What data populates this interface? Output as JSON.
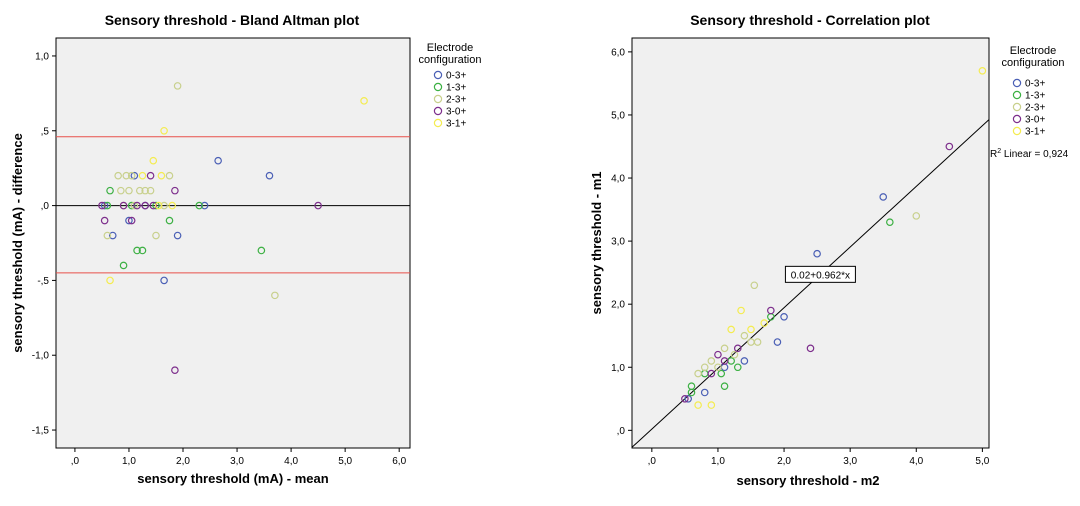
{
  "colors": {
    "plot_bg": "#f0f0f0",
    "limit_line": "#e8504a",
    "zero_line": "#000000",
    "fit_line": "#000000",
    "series": {
      "0-3+": "#4a5fb5",
      "1-3+": "#3cb043",
      "2-3+": "#c8d08c",
      "3-0+": "#7d2e8c",
      "3-1+": "#f4ec50"
    }
  },
  "chart_data": [
    {
      "type": "scatter",
      "title": "Sensory threshold - Bland Altman plot",
      "xlabel": "sensory threshold (mA) - mean",
      "ylabel": "sensory threshold (mA) - difference",
      "xlim": [
        -0.35,
        6.2
      ],
      "ylim": [
        -1.62,
        1.12
      ],
      "xticks": [
        0,
        1,
        2,
        3,
        4,
        5,
        6
      ],
      "xtick_labels": [
        ",0",
        "1,0",
        "2,0",
        "3,0",
        "4,0",
        "5,0",
        "6,0"
      ],
      "yticks": [
        -1.5,
        -1.0,
        -0.5,
        0.0,
        0.5,
        1.0
      ],
      "ytick_labels": [
        "-1,5",
        "-1,0",
        "-,5",
        ",0",
        ",5",
        "1,0"
      ],
      "grid": false,
      "legend": {
        "title_lines": [
          "Electrode",
          "configuration"
        ],
        "placement": "right",
        "entries": [
          "0-3+",
          "1-3+",
          "2-3+",
          "3-0+",
          "3-1+"
        ]
      },
      "reference_lines": [
        {
          "y": 0.46,
          "color_key": "limit_line"
        },
        {
          "y": 0.0,
          "color_key": "zero_line"
        },
        {
          "y": -0.45,
          "color_key": "limit_line"
        }
      ],
      "series": [
        {
          "name": "0-3+",
          "points": [
            [
              0.55,
              0.0
            ],
            [
              0.7,
              -0.2
            ],
            [
              1.0,
              -0.1
            ],
            [
              1.1,
              0.2
            ],
            [
              1.3,
              0.0
            ],
            [
              1.65,
              -0.5
            ],
            [
              1.9,
              -0.2
            ],
            [
              2.4,
              0.0
            ],
            [
              2.65,
              0.3
            ],
            [
              3.6,
              0.2
            ]
          ]
        },
        {
          "name": "1-3+",
          "points": [
            [
              0.6,
              0.0
            ],
            [
              0.65,
              0.1
            ],
            [
              0.9,
              -0.4
            ],
            [
              1.05,
              0.0
            ],
            [
              1.15,
              -0.3
            ],
            [
              1.25,
              -0.3
            ],
            [
              1.5,
              0.0
            ],
            [
              1.75,
              -0.1
            ],
            [
              2.3,
              0.0
            ],
            [
              3.45,
              -0.3
            ]
          ]
        },
        {
          "name": "2-3+",
          "points": [
            [
              0.6,
              -0.2
            ],
            [
              0.8,
              0.2
            ],
            [
              0.85,
              0.1
            ],
            [
              0.9,
              0.0
            ],
            [
              0.95,
              0.2
            ],
            [
              1.0,
              0.1
            ],
            [
              1.05,
              0.2
            ],
            [
              1.1,
              0.0
            ],
            [
              1.2,
              0.1
            ],
            [
              1.3,
              0.1
            ],
            [
              1.4,
              0.1
            ],
            [
              1.5,
              -0.2
            ],
            [
              1.65,
              0.0
            ],
            [
              1.75,
              0.2
            ],
            [
              1.9,
              0.8
            ],
            [
              3.7,
              -0.6
            ]
          ]
        },
        {
          "name": "3-0+",
          "points": [
            [
              0.5,
              0.0
            ],
            [
              0.55,
              -0.1
            ],
            [
              0.9,
              0.0
            ],
            [
              1.05,
              -0.1
            ],
            [
              1.15,
              0.0
            ],
            [
              1.3,
              0.0
            ],
            [
              1.4,
              0.2
            ],
            [
              1.45,
              0.0
            ],
            [
              1.85,
              0.1
            ],
            [
              1.85,
              -1.1
            ],
            [
              4.5,
              0.0
            ]
          ]
        },
        {
          "name": "3-1+",
          "points": [
            [
              0.65,
              -0.5
            ],
            [
              1.25,
              0.2
            ],
            [
              1.45,
              0.3
            ],
            [
              1.55,
              0.0
            ],
            [
              1.6,
              0.2
            ],
            [
              1.65,
              0.5
            ],
            [
              1.8,
              0.0
            ],
            [
              5.35,
              0.7
            ]
          ]
        }
      ]
    },
    {
      "type": "scatter",
      "title": "Sensory threshold - Correlation plot",
      "xlabel": "sensory threshold - m2",
      "ylabel": "sensory threshold - m1",
      "xlim": [
        -0.3,
        5.1
      ],
      "ylim": [
        -0.28,
        6.22
      ],
      "xticks": [
        0,
        1,
        2,
        3,
        4,
        5
      ],
      "xtick_labels": [
        ",0",
        "1,0",
        "2,0",
        "3,0",
        "4,0",
        "5,0"
      ],
      "yticks": [
        0,
        1,
        2,
        3,
        4,
        5,
        6
      ],
      "ytick_labels": [
        ",0",
        "1,0",
        "2,0",
        "3,0",
        "4,0",
        "5,0",
        "6,0"
      ],
      "grid": false,
      "legend": {
        "title_lines": [
          "Electrode",
          "configuration"
        ],
        "placement": "right",
        "entries": [
          "0-3+",
          "1-3+",
          "2-3+",
          "3-0+",
          "3-1+"
        ],
        "r2_label": "R",
        "r2_sup": "2",
        "r2_text": " Linear = 0,924"
      },
      "fit": {
        "intercept": 0.02,
        "slope": 0.962,
        "label": "0.02+0.962*x",
        "label_at_x": 2.55
      },
      "series": [
        {
          "name": "0-3+",
          "points": [
            [
              0.55,
              0.5
            ],
            [
              0.8,
              0.6
            ],
            [
              1.1,
              1.0
            ],
            [
              1.4,
              1.1
            ],
            [
              1.9,
              1.4
            ],
            [
              2.0,
              1.8
            ],
            [
              2.5,
              2.8
            ],
            [
              3.5,
              3.7
            ]
          ]
        },
        {
          "name": "1-3+",
          "points": [
            [
              0.6,
              0.6
            ],
            [
              0.6,
              0.7
            ],
            [
              0.8,
              0.9
            ],
            [
              1.05,
              0.9
            ],
            [
              1.1,
              0.7
            ],
            [
              1.2,
              1.1
            ],
            [
              1.3,
              1.0
            ],
            [
              1.8,
              1.8
            ],
            [
              3.6,
              3.3
            ]
          ]
        },
        {
          "name": "2-3+",
          "points": [
            [
              0.7,
              0.9
            ],
            [
              0.8,
              1.0
            ],
            [
              0.9,
              1.1
            ],
            [
              1.0,
              1.0
            ],
            [
              1.1,
              1.3
            ],
            [
              1.25,
              1.2
            ],
            [
              1.4,
              1.5
            ],
            [
              1.5,
              1.4
            ],
            [
              1.55,
              2.3
            ],
            [
              1.6,
              1.4
            ],
            [
              4.0,
              3.4
            ]
          ]
        },
        {
          "name": "3-0+",
          "points": [
            [
              0.5,
              0.5
            ],
            [
              0.9,
              0.9
            ],
            [
              1.0,
              1.2
            ],
            [
              1.1,
              1.1
            ],
            [
              1.3,
              1.3
            ],
            [
              1.8,
              1.9
            ],
            [
              2.4,
              1.3
            ],
            [
              4.5,
              4.5
            ]
          ]
        },
        {
          "name": "3-1+",
          "points": [
            [
              0.7,
              0.4
            ],
            [
              0.9,
              0.4
            ],
            [
              1.2,
              1.6
            ],
            [
              1.35,
              1.9
            ],
            [
              1.5,
              1.6
            ],
            [
              1.7,
              1.7
            ],
            [
              5.0,
              5.7
            ]
          ]
        }
      ]
    }
  ]
}
